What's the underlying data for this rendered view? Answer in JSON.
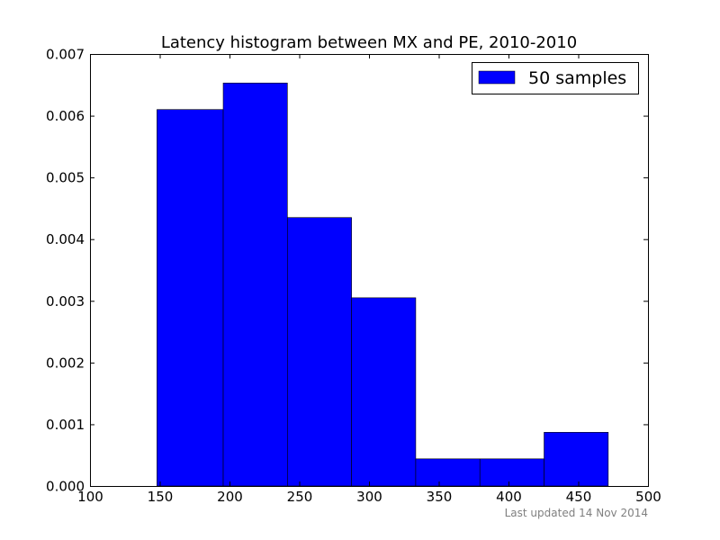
{
  "chart_data": {
    "type": "bar",
    "title": "Latency histogram between MX and PE, 2010-2010",
    "xlabel": "",
    "ylabel": "",
    "xlim": [
      100,
      500
    ],
    "ylim": [
      0,
      0.007
    ],
    "x_ticks": [
      "100",
      "150",
      "200",
      "250",
      "300",
      "350",
      "400",
      "450",
      "500"
    ],
    "y_ticks": [
      "0.000",
      "0.001",
      "0.002",
      "0.003",
      "0.004",
      "0.005",
      "0.006",
      "0.007"
    ],
    "bins": [
      {
        "start": 148,
        "end": 195.5,
        "value": 0.0061
      },
      {
        "start": 195.5,
        "end": 241.5,
        "value": 0.00653
      },
      {
        "start": 241.5,
        "end": 287.5,
        "value": 0.00435
      },
      {
        "start": 287.5,
        "end": 333.5,
        "value": 0.00305
      },
      {
        "start": 333.5,
        "end": 379.5,
        "value": 0.00044
      },
      {
        "start": 379.5,
        "end": 425.5,
        "value": 0.00044
      },
      {
        "start": 425.5,
        "end": 471.5,
        "value": 0.00087
      }
    ],
    "series": [
      {
        "name": "50 samples",
        "color": "#0000ff"
      }
    ],
    "legend_position": "top-right",
    "grid": false
  },
  "footnote": "Last updated 14 Nov 2014"
}
